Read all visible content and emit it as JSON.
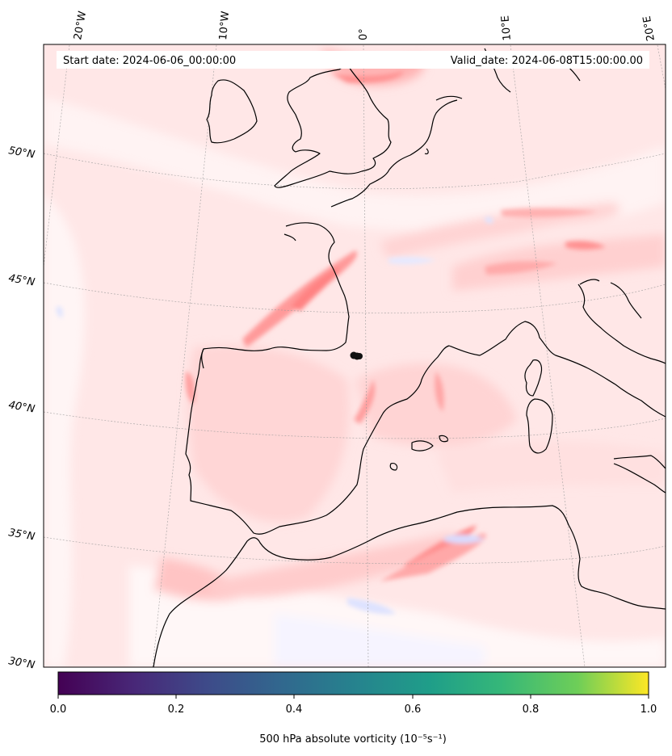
{
  "header": {
    "start_date": "Start date: 2024-06-06_00:00:00",
    "valid_date": "Valid_date: 2024-06-08T15:00:00.00"
  },
  "map": {
    "projection": "lambert-conformal",
    "extent": {
      "lon": [
        -20,
        20
      ],
      "lat": [
        30,
        54
      ]
    },
    "lon_labels": [
      "20°W",
      "10°W",
      "0°",
      "10°E",
      "20°E"
    ],
    "lat_labels": [
      "50°N",
      "45°N",
      "40°N",
      "35°N",
      "30°N"
    ],
    "field_colors": {
      "low": "#e8eeff",
      "neutral": "#fff5f5",
      "mid": "#ffdcdc",
      "high": "#ff9a9a",
      "peak": "#f06a6a"
    },
    "coastline_color": "#000000",
    "marker": "black-dot-cluster"
  },
  "colorbar": {
    "colormap": "viridis",
    "ticks": [
      "0.0",
      "0.2",
      "0.4",
      "0.6",
      "0.8",
      "1.0"
    ],
    "label": "500 hPa absolute vorticity (10⁻⁵s⁻¹)",
    "range": [
      0,
      1
    ]
  }
}
